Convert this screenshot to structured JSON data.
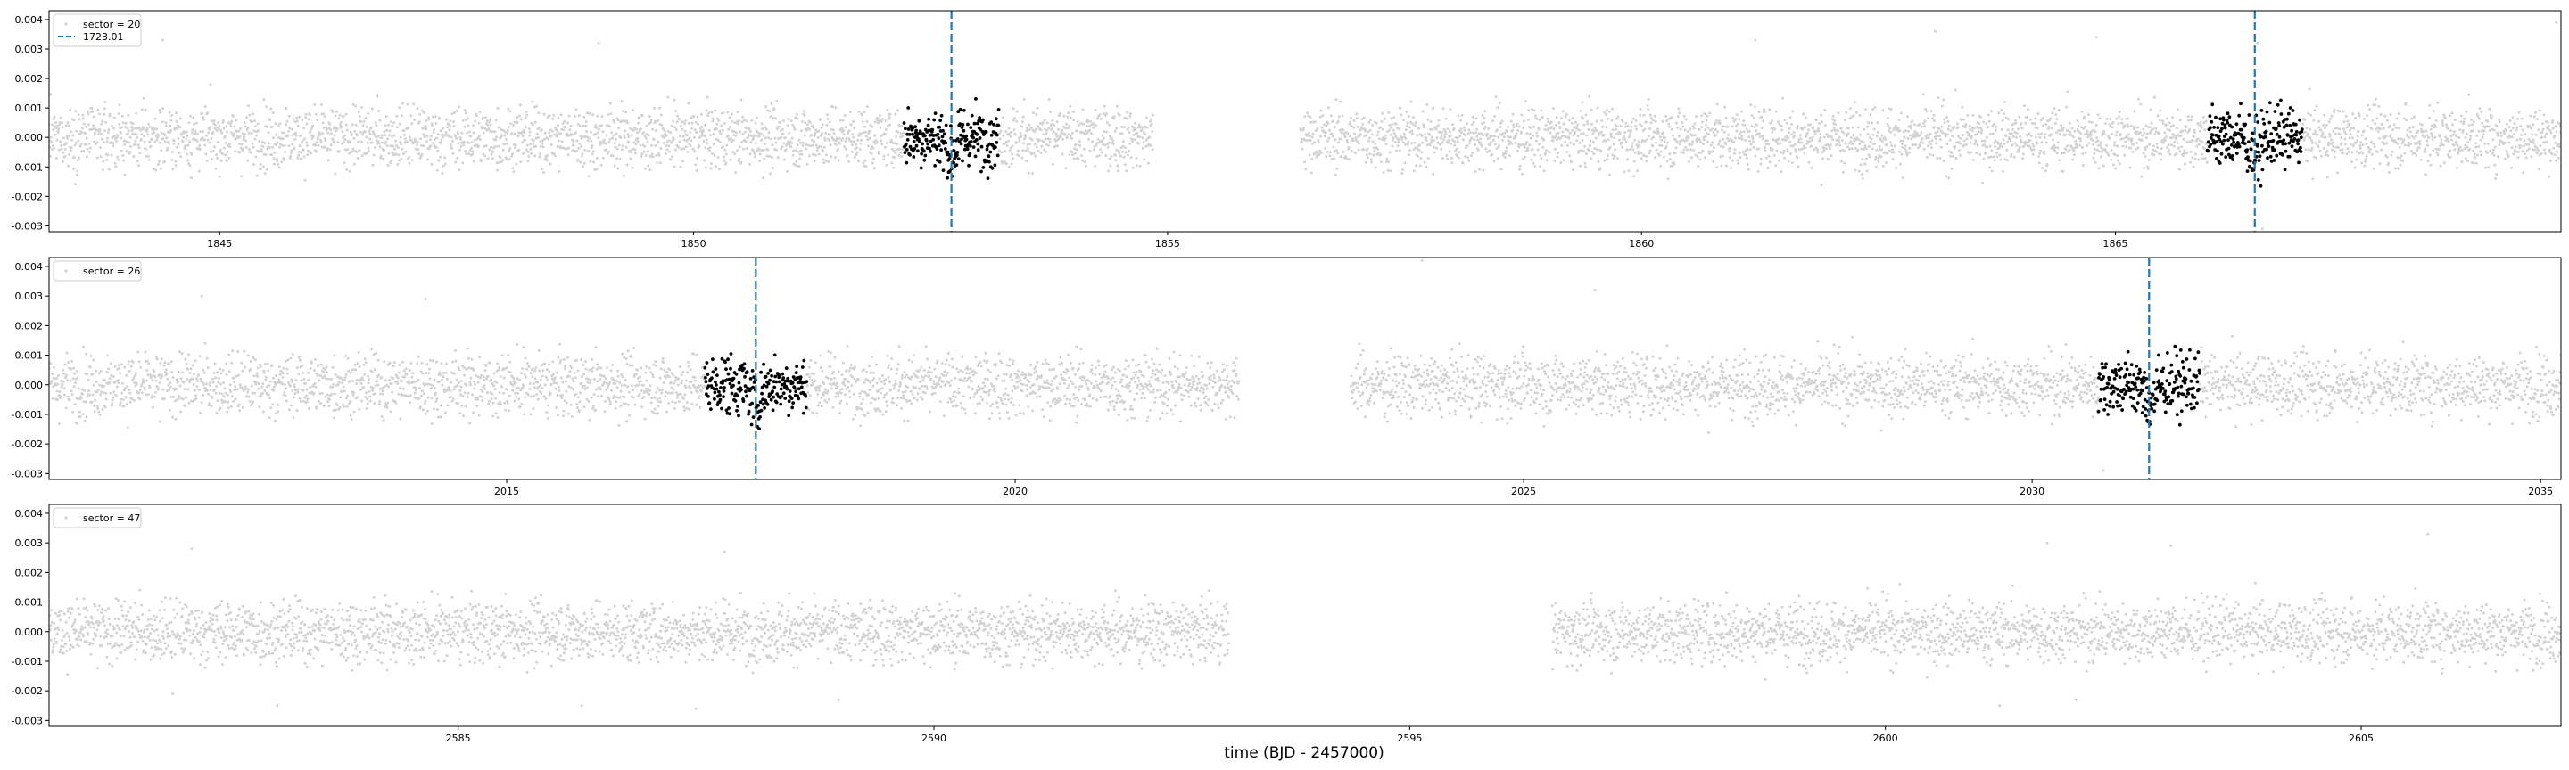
{
  "figure": {
    "xlabel": "time (BJD - 2457000)"
  },
  "colors": {
    "out_of_transit": "#d3d3d3",
    "in_transit": "#000000",
    "transit_marker": "#1f77b4",
    "axes": "#000000"
  },
  "chart_data": [
    {
      "type": "scatter",
      "legend": {
        "sector_label": "sector = 20",
        "marker_label": "1723.01",
        "placement": "upper-left"
      },
      "xlim": [
        1843.2,
        1869.7
      ],
      "ylim": [
        -0.0032,
        0.0043
      ],
      "xticks": [
        1845,
        1850,
        1855,
        1860,
        1865
      ],
      "yticks": [
        -0.003,
        -0.002,
        -0.001,
        0.0,
        0.001,
        0.002,
        0.003,
        0.004
      ],
      "ytick_labels": [
        "-0.003",
        "-0.002",
        "-0.001",
        "0.000",
        "0.001",
        "0.002",
        "0.003",
        "0.004"
      ],
      "segments": [
        [
          1843.2,
          1854.85
        ],
        [
          1856.4,
          1869.7
        ]
      ],
      "transit_times": [
        1852.72,
        1866.47
      ],
      "transit_half_window": 0.5,
      "noise_sigma": 0.0006,
      "transit_depth": 0.0007,
      "outliers": [
        [
          1864.8,
          0.0034
        ],
        [
          1866.5,
          0.0032
        ],
        [
          1861.2,
          0.0033
        ],
        [
          1844.4,
          0.0033
        ],
        [
          1849.0,
          0.0032
        ],
        [
          1869.65,
          0.0039
        ],
        [
          1863.1,
          0.0036
        ],
        [
          1866.55,
          -0.0031
        ]
      ]
    },
    {
      "type": "scatter",
      "legend": {
        "sector_label": "sector = 26",
        "placement": "upper-left"
      },
      "xlim": [
        2010.5,
        2035.2
      ],
      "ylim": [
        -0.0032,
        0.0043
      ],
      "xticks": [
        2015,
        2020,
        2025,
        2030,
        2035
      ],
      "yticks": [
        -0.003,
        -0.002,
        -0.001,
        0.0,
        0.001,
        0.002,
        0.003,
        0.004
      ],
      "ytick_labels": [
        "-0.003",
        "-0.002",
        "-0.001",
        "0.000",
        "0.001",
        "0.002",
        "0.003",
        "0.004"
      ],
      "segments": [
        [
          2010.5,
          2022.2
        ],
        [
          2023.3,
          2035.2
        ]
      ],
      "transit_times": [
        2017.45,
        2031.15
      ],
      "transit_half_window": 0.5,
      "noise_sigma": 0.0006,
      "transit_depth": 0.0007,
      "outliers": [
        [
          2014.2,
          0.0029
        ],
        [
          2012.0,
          0.003
        ],
        [
          2025.7,
          0.0032
        ],
        [
          2024.0,
          0.0042
        ],
        [
          2030.7,
          -0.0029
        ]
      ]
    },
    {
      "type": "scatter",
      "legend": {
        "sector_label": "sector = 47",
        "placement": "upper-left"
      },
      "xlim": [
        2580.7,
        2607.1
      ],
      "ylim": [
        -0.0032,
        0.0043
      ],
      "xticks": [
        2585,
        2590,
        2595,
        2600,
        2605
      ],
      "yticks": [
        -0.003,
        -0.002,
        -0.001,
        0.0,
        0.001,
        0.002,
        0.003,
        0.004
      ],
      "ytick_labels": [
        "-0.003",
        "-0.002",
        "-0.001",
        "0.000",
        "0.001",
        "0.002",
        "0.003",
        "0.004"
      ],
      "segments": [
        [
          2580.7,
          2593.1
        ],
        [
          2596.5,
          2607.1
        ]
      ],
      "transit_times": [],
      "transit_half_window": 0.5,
      "noise_sigma": 0.0006,
      "transit_depth": 0.0007,
      "outliers": [
        [
          2605.7,
          0.0033
        ],
        [
          2601.7,
          0.003
        ],
        [
          2582.2,
          0.0028
        ],
        [
          2586.3,
          -0.0025
        ],
        [
          2587.5,
          -0.0026
        ],
        [
          2583.1,
          -0.0025
        ],
        [
          2601.2,
          -0.0025
        ],
        [
          2602.0,
          -0.0023
        ],
        [
          2589.0,
          -0.0023
        ],
        [
          2582.0,
          -0.0021
        ],
        [
          2587.8,
          0.0027
        ],
        [
          2603.0,
          0.0029
        ]
      ]
    }
  ]
}
